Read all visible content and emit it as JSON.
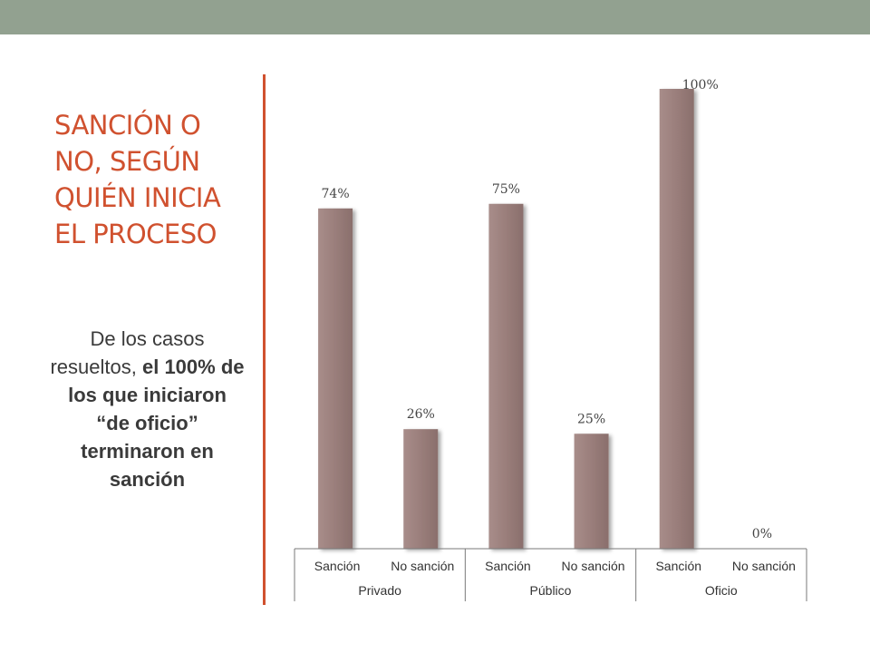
{
  "slide": {
    "title_lines": [
      "SANCIÓN O",
      "NO, SEGÚN",
      "QUIÉN INICIA",
      "EL PROCESO"
    ],
    "body": {
      "normal": "De los casos resueltos, ",
      "bold": "el 100% de los que iniciaron “de oficio” terminaron en sanción"
    }
  },
  "colors": {
    "accent": "#d0512f",
    "topbar": "#92a190",
    "bar": "#9c7f7c"
  },
  "chart_data": {
    "type": "bar",
    "title": "",
    "xlabel": "",
    "ylabel": "",
    "ylim": [
      0,
      100
    ],
    "grid": false,
    "categories": [
      "Sanción",
      "No sanción",
      "Sanción",
      "No sanción",
      "Sanción",
      "No sanción"
    ],
    "groups": [
      "Privado",
      "Público",
      "Oficio"
    ],
    "values": [
      74,
      26,
      75,
      25,
      100,
      0
    ],
    "labels": [
      "74%",
      "26%",
      "75%",
      "25%",
      "100%",
      "0%"
    ]
  }
}
